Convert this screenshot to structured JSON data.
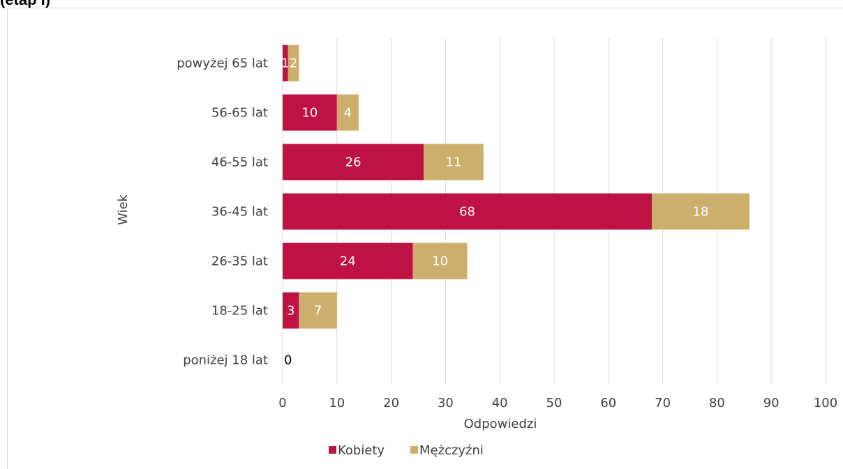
{
  "page": {
    "title": "(etap I)"
  },
  "chart_data": {
    "type": "bar",
    "orientation": "horizontal",
    "stacked": true,
    "title": "",
    "xlabel": "Odpowiedzi",
    "ylabel": "Wiek",
    "categories": [
      "poniżej 18 lat",
      "18-25 lat",
      "26-35 lat",
      "36-45 lat",
      "46-55 lat",
      "56-65 lat",
      "powyżej 65 lat"
    ],
    "series": [
      {
        "name": "Kobiety",
        "color": "#be1244",
        "values": [
          0,
          3,
          24,
          68,
          26,
          10,
          1
        ],
        "labels": [
          "0",
          "3",
          "24",
          "68",
          "26",
          "10",
          "1"
        ]
      },
      {
        "name": "Mężczyźni",
        "color": "#ccaf6c",
        "values": [
          0,
          7,
          10,
          18,
          11,
          4,
          2
        ],
        "labels": [
          "",
          "7",
          "10",
          "18",
          "11",
          "4",
          "2"
        ]
      }
    ],
    "xlim": [
      0,
      100
    ],
    "xticks": [
      "0",
      "10",
      "20",
      "30",
      "40",
      "50",
      "60",
      "70",
      "80",
      "90",
      "100"
    ],
    "grid": "vertical",
    "legend": "bottom"
  }
}
